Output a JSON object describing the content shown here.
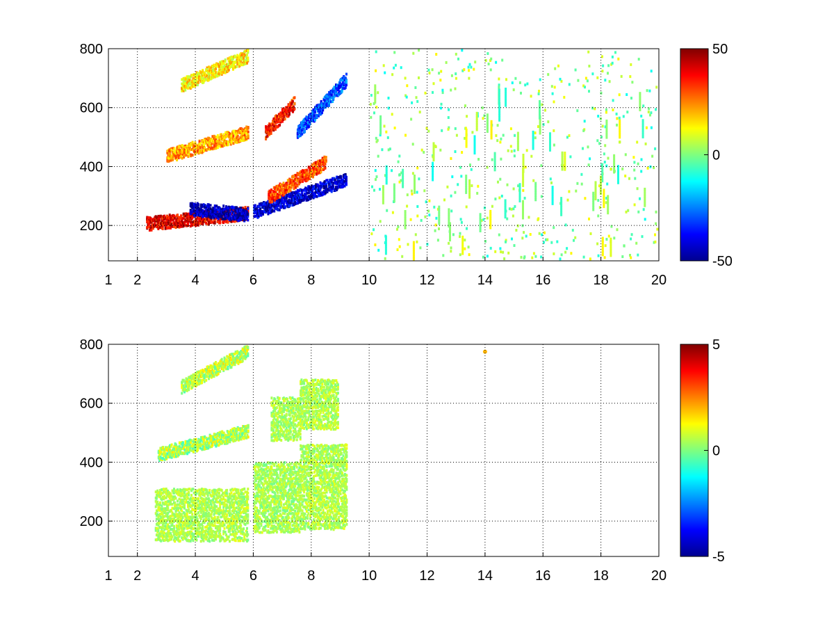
{
  "chart_data": [
    {
      "type": "heatmap",
      "title": "",
      "xlabel": "",
      "ylabel": "",
      "xlim": [
        1,
        20
      ],
      "ylim": [
        80,
        800
      ],
      "x_ticks": [
        1,
        2,
        4,
        6,
        8,
        10,
        12,
        14,
        16,
        18,
        20
      ],
      "y_ticks": [
        200,
        400,
        600,
        800
      ],
      "grid": true,
      "colormap": "jet",
      "color_range": [
        -50,
        50
      ],
      "colorbar_ticks": [
        50,
        0,
        -50
      ],
      "features": [
        {
          "kind": "band",
          "x_range": [
            2.3,
            5.8
          ],
          "y_start": 210,
          "y_end": 245,
          "value": 40
        },
        {
          "kind": "band",
          "x_range": [
            3.0,
            5.8
          ],
          "y_start": 440,
          "y_end": 520,
          "value": 22
        },
        {
          "kind": "band",
          "x_range": [
            3.5,
            5.8
          ],
          "y_start": 680,
          "y_end": 780,
          "value": 14
        },
        {
          "kind": "band",
          "x_range": [
            3.8,
            5.8
          ],
          "y_start": 260,
          "y_end": 240,
          "value": -45
        },
        {
          "kind": "band",
          "x_range": [
            6.0,
            9.2
          ],
          "y_start": 250,
          "y_end": 360,
          "value": -42
        },
        {
          "kind": "band",
          "x_range": [
            6.5,
            8.5
          ],
          "y_start": 300,
          "y_end": 420,
          "value": 30
        },
        {
          "kind": "band",
          "x_range": [
            7.5,
            9.2
          ],
          "y_start": 520,
          "y_end": 700,
          "value": -30
        },
        {
          "kind": "band",
          "x_range": [
            6.4,
            7.4
          ],
          "y_start": 520,
          "y_end": 620,
          "value": 35
        }
      ],
      "sparse_region": {
        "x_range": [
          10,
          20
        ],
        "y_range": [
          80,
          800
        ],
        "value_range": [
          -12,
          14
        ]
      }
    },
    {
      "type": "heatmap",
      "title": "",
      "xlabel": "",
      "ylabel": "",
      "xlim": [
        1,
        20
      ],
      "ylim": [
        80,
        800
      ],
      "x_ticks": [
        1,
        2,
        4,
        6,
        8,
        10,
        12,
        14,
        16,
        18,
        20
      ],
      "y_ticks": [
        200,
        400,
        600,
        800
      ],
      "grid": true,
      "colormap": "jet",
      "color_range": [
        -5,
        5
      ],
      "colorbar_ticks": [
        5,
        0,
        -5
      ],
      "features": [
        {
          "kind": "region",
          "x_range": [
            2.6,
            5.8
          ],
          "y_range": [
            140,
            310
          ],
          "value": 0.5
        },
        {
          "kind": "region",
          "x_range": [
            6.0,
            7.6
          ],
          "y_range": [
            170,
            400
          ],
          "value": 0.4
        },
        {
          "kind": "region",
          "x_range": [
            7.6,
            9.2
          ],
          "y_range": [
            180,
            460
          ],
          "value": 0.5
        },
        {
          "kind": "band",
          "x_range": [
            2.7,
            5.8
          ],
          "y_start": 430,
          "y_end": 510,
          "value": 0.4
        },
        {
          "kind": "band",
          "x_range": [
            3.5,
            5.8
          ],
          "y_start": 660,
          "y_end": 780,
          "value": 0.6
        },
        {
          "kind": "region",
          "x_range": [
            6.6,
            7.6
          ],
          "y_range": [
            480,
            620
          ],
          "value": 0.4
        },
        {
          "kind": "region",
          "x_range": [
            7.6,
            8.9
          ],
          "y_range": [
            520,
            680
          ],
          "value": 0.5
        },
        {
          "kind": "point",
          "x": 14,
          "y": 775,
          "value": 2
        }
      ]
    }
  ]
}
